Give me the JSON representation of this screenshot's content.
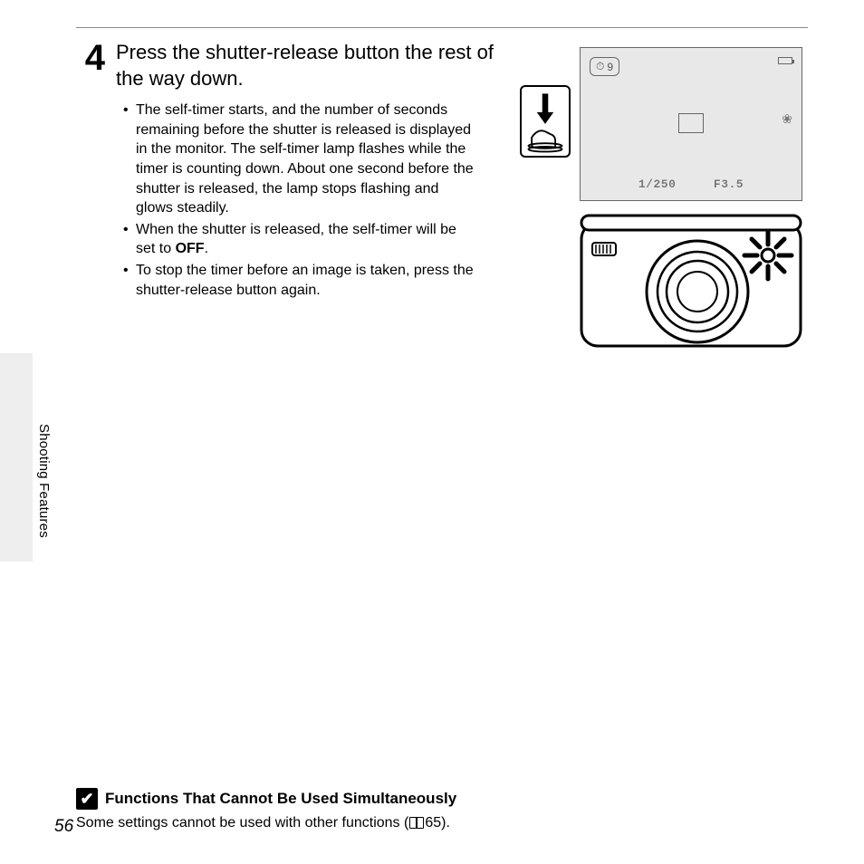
{
  "page": {
    "number": "56",
    "section": "Shooting Features",
    "ruleColor": "#888888",
    "background": "#ffffff",
    "sidebarColor": "#eeeeee"
  },
  "step": {
    "number": "4",
    "title": "Press the shutter-release button the rest of the way down.",
    "bullets": [
      {
        "pre": "The self-timer starts, and the number of seconds remaining before the shutter is released is displayed in the monitor. The self-timer lamp flashes while the timer is counting down. About one second before the shutter is released, the lamp stops flashing and glows steadily.",
        "bold": "",
        "post": ""
      },
      {
        "pre": "When the shutter is released, the self-timer will be set to ",
        "bold": "OFF",
        "post": "."
      },
      {
        "pre": "To stop the timer before an image is taken, press the shutter-release button again.",
        "bold": "",
        "post": ""
      }
    ]
  },
  "monitor": {
    "timer_icon": "⏱",
    "timer_value": "9",
    "shutter_speed": "1/250",
    "aperture": "F3.5",
    "bgColor": "#e8e8e8",
    "borderColor": "#666666",
    "textColor": "#777777"
  },
  "note": {
    "badge": "✔",
    "title": "Functions That Cannot Be Used Simultaneously",
    "body_pre": "Some settings cannot be used with other functions (",
    "body_ref": "65",
    "body_post": ")."
  },
  "typography": {
    "stepNumSize": 40,
    "titleSize": 22,
    "bodySize": 16,
    "noteTitleSize": 17
  },
  "colors": {
    "text": "#000000",
    "iconStroke": "#000000"
  }
}
